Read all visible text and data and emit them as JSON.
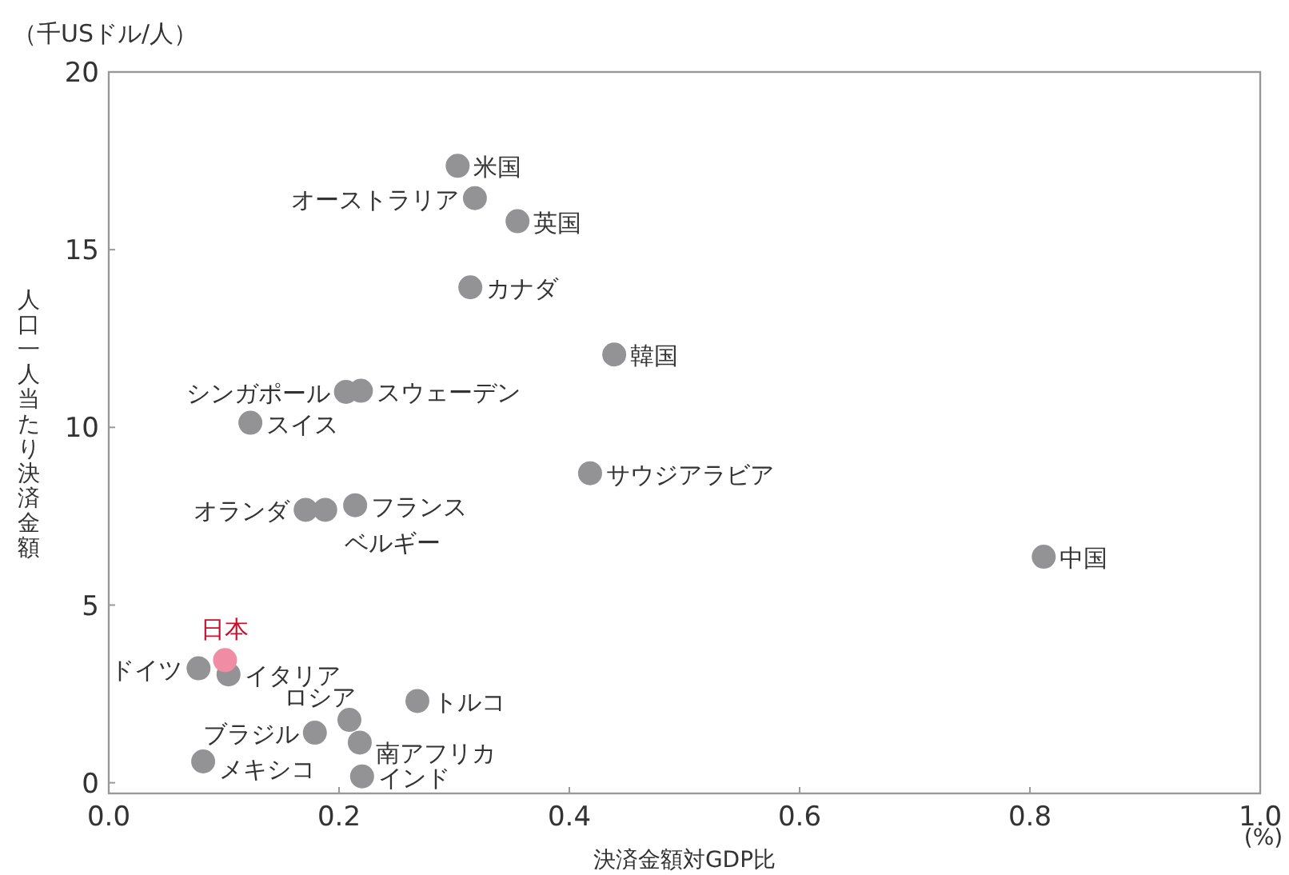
{
  "chart_data": {
    "type": "scatter",
    "xlabel": "決済金額対GDP比",
    "ylabel": "人口一人当たり決済金額",
    "xlim": [
      0,
      1.0
    ],
    "ylim": [
      -0.3,
      20
    ],
    "xticks": [
      {
        "value": 0,
        "label": "0.0"
      },
      {
        "value": 0.2,
        "label": "0.2"
      },
      {
        "value": 0.4,
        "label": "0.4"
      },
      {
        "value": 0.6,
        "label": "0.6"
      },
      {
        "value": 0.8,
        "label": "0.8"
      },
      {
        "value": 1.0,
        "label": "1.0"
      }
    ],
    "yticks": [
      0,
      5,
      10,
      15,
      20
    ],
    "grid": false,
    "legend": false,
    "marker": "circle",
    "series": [
      {
        "color": "#939396",
        "x": [
          0.303,
          0.318,
          0.355,
          0.314,
          0.439,
          0.206,
          0.219,
          0.123,
          0.418,
          0.171,
          0.188,
          0.214,
          0.812,
          0.078,
          0.104,
          0.268,
          0.209,
          0.179,
          0.218,
          0.082,
          0.22
        ],
        "values": [
          17.36,
          16.45,
          15.8,
          13.94,
          12.05,
          11.0,
          11.03,
          10.13,
          8.71,
          7.68,
          7.68,
          7.81,
          6.36,
          3.22,
          3.05,
          2.3,
          1.77,
          1.41,
          1.13,
          0.6,
          0.18
        ]
      },
      {
        "name": "日本",
        "color": "#f08ca3",
        "x": [
          0.101
        ],
        "values": [
          3.45
        ]
      }
    ],
    "annotations": [
      "（千USドル/人）",
      "(%)",
      {
        "text": "米国",
        "x": 0.303,
        "y": 17.36
      },
      {
        "text": "オーストラリア",
        "x": 0.318,
        "y": 16.45
      },
      {
        "text": "英国",
        "x": 0.355,
        "y": 15.8
      },
      {
        "text": "カナダ",
        "x": 0.314,
        "y": 13.94
      },
      {
        "text": "韓国",
        "x": 0.439,
        "y": 12.05
      },
      {
        "text": "シンガポール",
        "x": 0.206,
        "y": 11.0
      },
      {
        "text": "スウェーデン",
        "x": 0.219,
        "y": 11.03
      },
      {
        "text": "スイス",
        "x": 0.123,
        "y": 10.13
      },
      {
        "text": "サウジアラビア",
        "x": 0.418,
        "y": 8.71
      },
      {
        "text": "オランダ",
        "x": 0.171,
        "y": 7.68
      },
      {
        "text": "ベルギー",
        "x": 0.188,
        "y": 7.68
      },
      {
        "text": "フランス",
        "x": 0.214,
        "y": 7.81
      },
      {
        "text": "中国",
        "x": 0.812,
        "y": 6.36
      },
      {
        "text": "ドイツ",
        "x": 0.078,
        "y": 3.22
      },
      {
        "text": "イタリア",
        "x": 0.104,
        "y": 3.05
      },
      {
        "text": "トルコ",
        "x": 0.268,
        "y": 2.3
      },
      {
        "text": "ロシア",
        "x": 0.209,
        "y": 1.77
      },
      {
        "text": "ブラジル",
        "x": 0.179,
        "y": 1.41
      },
      {
        "text": "南アフリカ",
        "x": 0.218,
        "y": 1.13
      },
      {
        "text": "メキシコ",
        "x": 0.082,
        "y": 0.6
      },
      {
        "text": "インド",
        "x": 0.22,
        "y": 0.18
      }
    ]
  }
}
